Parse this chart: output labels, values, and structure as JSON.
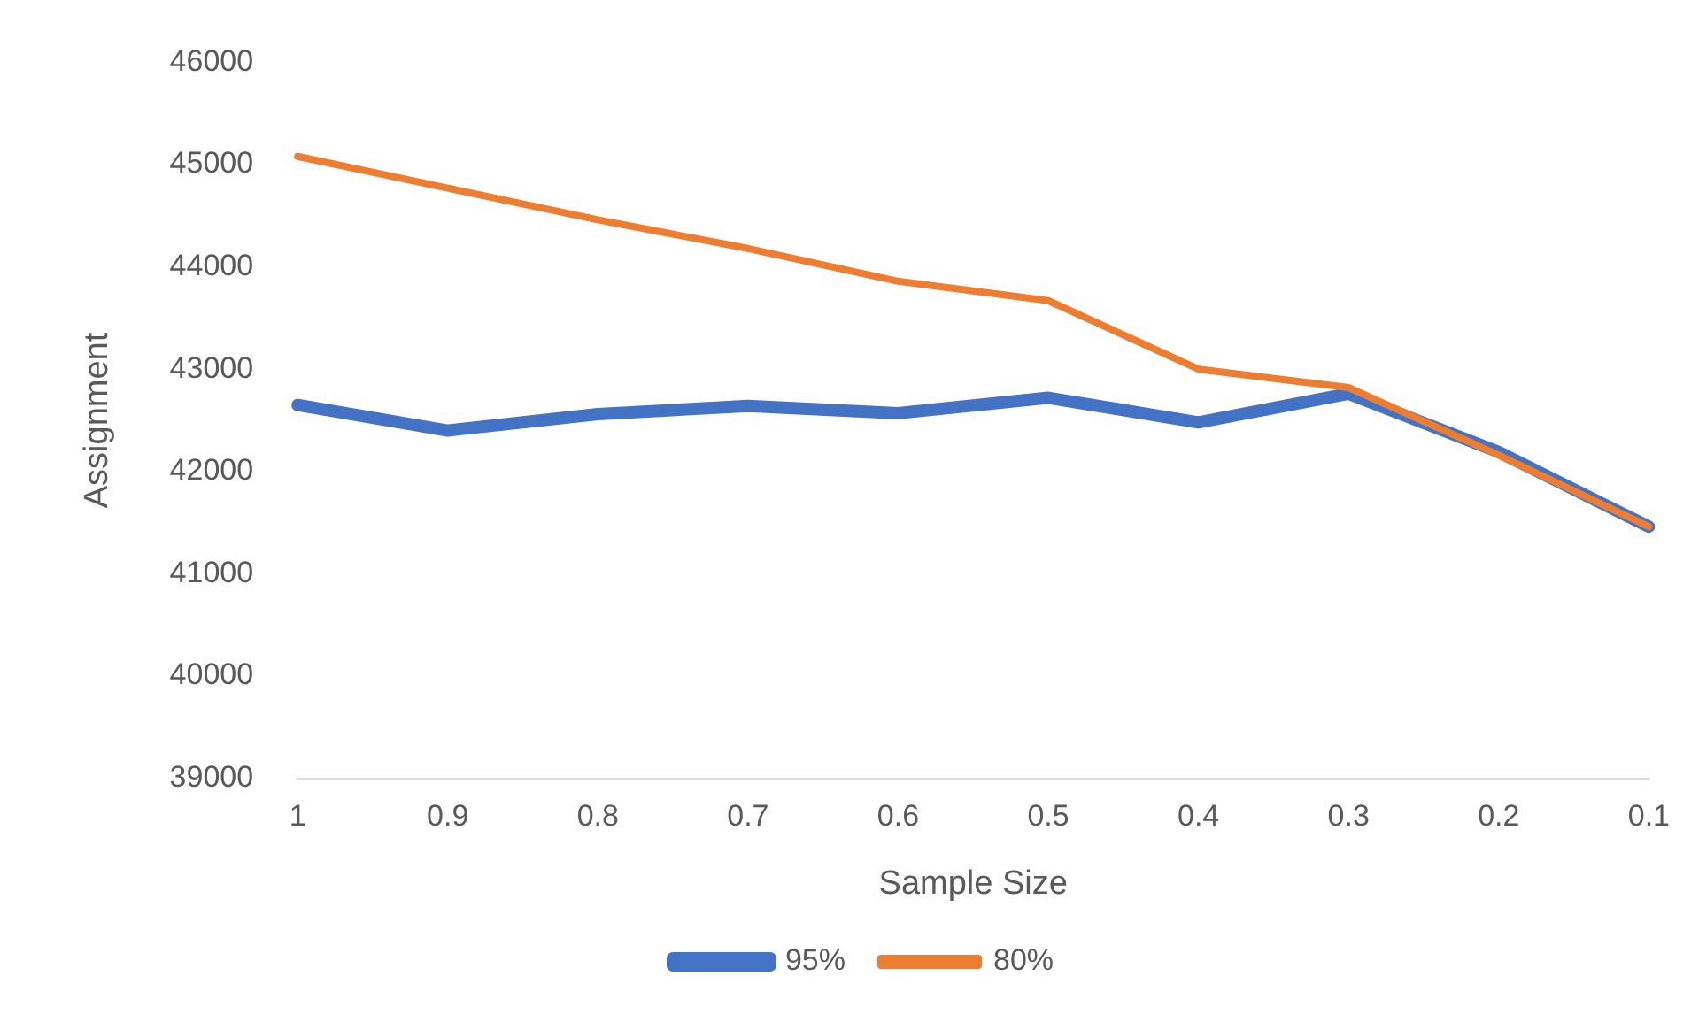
{
  "chart_data": {
    "type": "line",
    "xlabel": "Sample Size",
    "ylabel": "Assignment",
    "categories": [
      "1",
      "0.9",
      "0.8",
      "0.7",
      "0.6",
      "0.5",
      "0.4",
      "0.3",
      "0.2",
      "0.1"
    ],
    "series": [
      {
        "name": "95%",
        "color": "#4472c4",
        "values": [
          42650,
          42400,
          42560,
          42640,
          42570,
          42720,
          42480,
          42760,
          42190,
          41460
        ]
      },
      {
        "name": "80%",
        "color": "#ed7d31",
        "values": [
          45080,
          44770,
          44460,
          44180,
          43860,
          43670,
          43000,
          42820,
          42160,
          41460
        ]
      }
    ],
    "ylim": [
      39000,
      46000
    ],
    "yticks": [
      39000,
      40000,
      41000,
      42000,
      43000,
      44000,
      45000,
      46000
    ],
    "grid": false,
    "legend": "bottom",
    "marker": "none",
    "line_style": "solid"
  }
}
